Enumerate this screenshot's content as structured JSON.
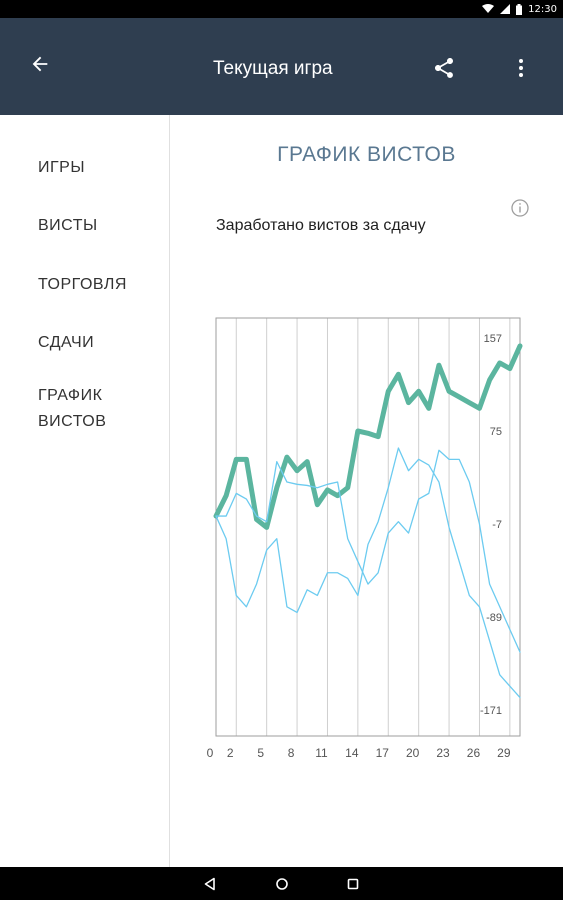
{
  "status_bar": {
    "time": "12:30"
  },
  "app_bar": {
    "title": "Текущая игра",
    "icons": {
      "back": "arrow-back-icon",
      "share": "share-icon",
      "more": "more-vert-icon"
    }
  },
  "nav": {
    "items": [
      {
        "label": "ИГРЫ"
      },
      {
        "label": "ВИСТЫ"
      },
      {
        "label": "ТОРГОВЛЯ"
      },
      {
        "label": "СДАЧИ"
      },
      {
        "label_lines": [
          "ГРАФИК",
          "ВИСТОВ"
        ]
      }
    ]
  },
  "content": {
    "title": "ГРАФИК ВИСТОВ",
    "subtitle": "Заработано вистов за сдачу",
    "info_icon": "info-icon"
  },
  "colors": {
    "app_bar": "#2f3e50",
    "title_accent": "#5a7891",
    "series_main": "#5bb59f",
    "series_other": "#6ccbf0",
    "grid": "#cfcfcf"
  },
  "chart_data": {
    "type": "line",
    "xlim": [
      0,
      30
    ],
    "ylim": [
      -171,
      157
    ],
    "x_ticks": [
      0,
      2,
      5,
      8,
      11,
      14,
      17,
      20,
      23,
      26,
      29
    ],
    "y_ticks": [
      157,
      75,
      -7,
      -89,
      -171
    ],
    "grid": "vertical",
    "y_axis_position": "right",
    "series": [
      {
        "style": "thick",
        "values": [
          0,
          18,
          50,
          50,
          -3,
          -10,
          25,
          52,
          40,
          48,
          10,
          23,
          18,
          25,
          75,
          73,
          70,
          110,
          125,
          100,
          110,
          95,
          133,
          110,
          105,
          100,
          95,
          120,
          135,
          130,
          150
        ]
      },
      {
        "style": "thin",
        "values": [
          0,
          0,
          20,
          15,
          0,
          -5,
          48,
          30,
          28,
          27,
          25,
          28,
          30,
          -20,
          -40,
          -60,
          -50,
          -15,
          -5,
          -15,
          15,
          20,
          58,
          50,
          50,
          30,
          -7,
          -60,
          -80,
          -100,
          -120
        ]
      },
      {
        "style": "thin",
        "values": [
          0,
          -20,
          -70,
          -80,
          -60,
          -30,
          -20,
          -80,
          -85,
          -65,
          -70,
          -50,
          -50,
          -55,
          -70,
          -25,
          -5,
          25,
          60,
          40,
          50,
          45,
          30,
          -10,
          -40,
          -70,
          -80,
          -110,
          -140,
          -150,
          -160
        ]
      }
    ]
  }
}
